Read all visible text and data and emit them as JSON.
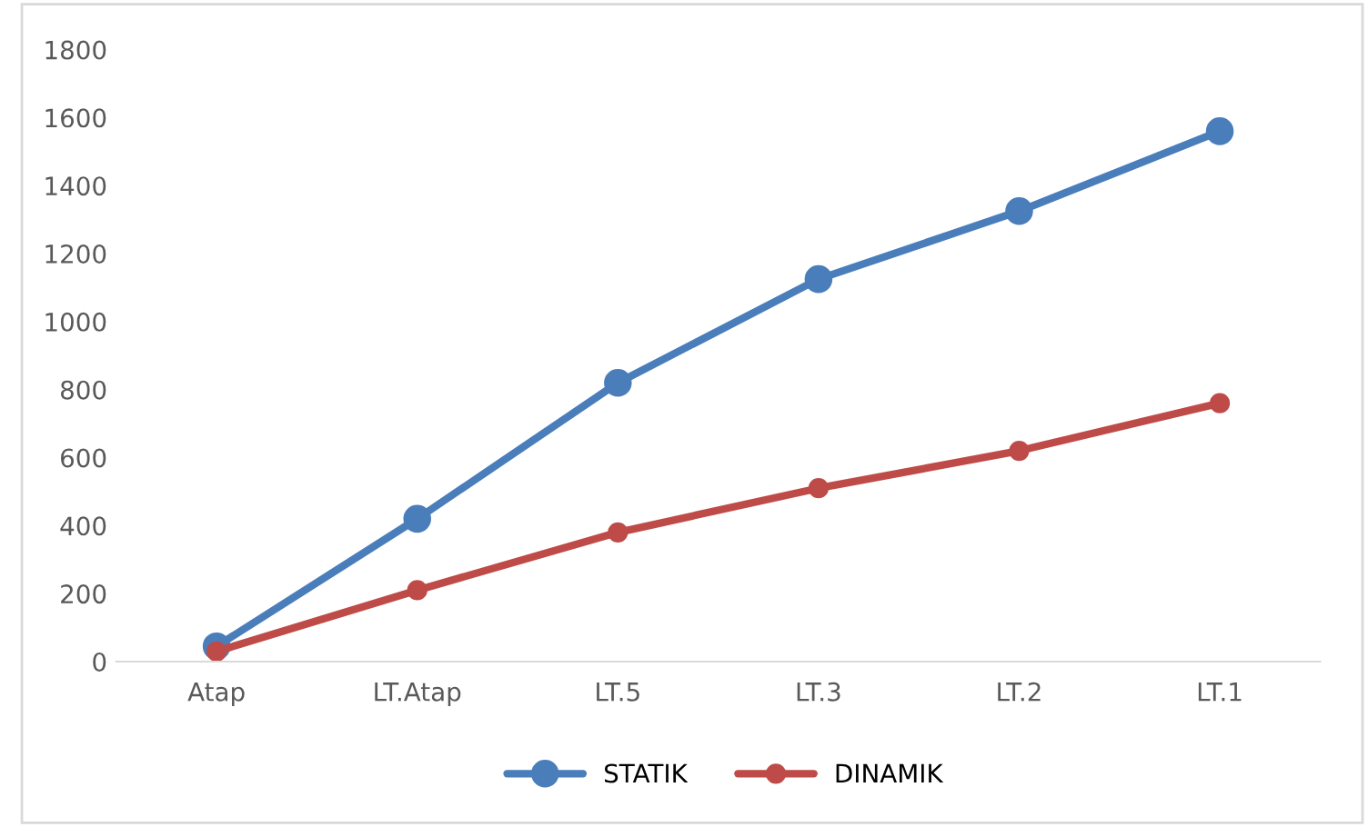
{
  "chart_data": {
    "type": "line",
    "categories": [
      "Atap",
      "LT.Atap",
      "LT.5",
      "LT.3",
      "LT.2",
      "LT.1"
    ],
    "series": [
      {
        "name": "STATIK",
        "color": "#4a7ebb",
        "values": [
          45,
          420,
          820,
          1125,
          1325,
          1560
        ]
      },
      {
        "name": "DINAMIK",
        "color": "#be4b48",
        "values": [
          30,
          210,
          380,
          510,
          620,
          760
        ]
      }
    ],
    "ylim": [
      0,
      1800
    ],
    "yticks": [
      0,
      200,
      400,
      600,
      800,
      1000,
      1200,
      1400,
      1600,
      1800
    ],
    "grid": false,
    "legend": "bottom",
    "marker": "circle",
    "line_style": "solid"
  }
}
